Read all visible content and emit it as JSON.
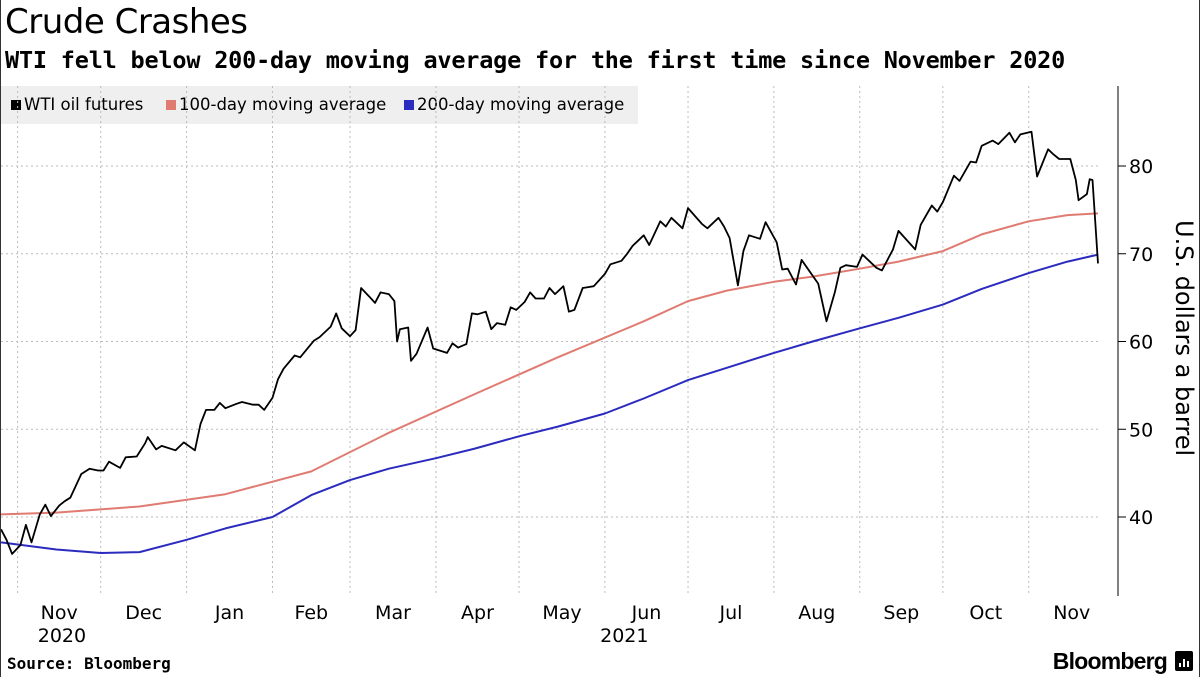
{
  "title": "Crude Crashes",
  "subtitle": "WTI fell below 200-day moving average for the first time since November 2020",
  "source": "Source: Bloomberg",
  "brand": "Bloomberg",
  "colors": {
    "wti": "#000000",
    "ma100": "#e07b72",
    "ma200": "#2b2bbf",
    "grid": "#bbbbbb"
  },
  "chart_data": {
    "type": "line",
    "title": "Crude Crashes",
    "subtitle": "WTI fell below 200-day moving average for the first time since November 2020",
    "ylabel": "U.S. dollars a barrel",
    "ylim": [
      32,
      87
    ],
    "yticks": [
      40,
      50,
      60,
      70,
      80
    ],
    "xlim": [
      "2020-10-26",
      "2021-11-26"
    ],
    "grid": true,
    "legend_position": "top-left",
    "month_ticks": [
      {
        "label": "Nov",
        "date": "2020-11-01"
      },
      {
        "label": "Dec",
        "date": "2020-12-01"
      },
      {
        "label": "Jan",
        "date": "2021-01-01"
      },
      {
        "label": "Feb",
        "date": "2021-02-01"
      },
      {
        "label": "Mar",
        "date": "2021-03-01"
      },
      {
        "label": "Apr",
        "date": "2021-04-01"
      },
      {
        "label": "May",
        "date": "2021-05-01"
      },
      {
        "label": "Jun",
        "date": "2021-06-01"
      },
      {
        "label": "Jul",
        "date": "2021-07-01"
      },
      {
        "label": "Aug",
        "date": "2021-08-01"
      },
      {
        "label": "Sep",
        "date": "2021-09-01"
      },
      {
        "label": "Oct",
        "date": "2021-10-01"
      },
      {
        "label": "Nov",
        "date": "2021-11-01"
      }
    ],
    "year_labels": [
      {
        "label": "2020",
        "date": "2020-11-17"
      },
      {
        "label": "2021",
        "date": "2021-06-08"
      }
    ],
    "series": [
      {
        "name": "WTI oil futures",
        "color": "#000000",
        "points": [
          [
            "2020-10-26",
            38.6
          ],
          [
            "2020-10-28",
            37.4
          ],
          [
            "2020-10-30",
            35.8
          ],
          [
            "2020-11-02",
            36.8
          ],
          [
            "2020-11-04",
            39.1
          ],
          [
            "2020-11-06",
            37.1
          ],
          [
            "2020-11-09",
            40.3
          ],
          [
            "2020-11-11",
            41.4
          ],
          [
            "2020-11-13",
            40.1
          ],
          [
            "2020-11-16",
            41.3
          ],
          [
            "2020-11-18",
            41.8
          ],
          [
            "2020-11-20",
            42.2
          ],
          [
            "2020-11-24",
            44.9
          ],
          [
            "2020-11-27",
            45.5
          ],
          [
            "2020-11-30",
            45.3
          ],
          [
            "2020-12-02",
            45.3
          ],
          [
            "2020-12-04",
            46.3
          ],
          [
            "2020-12-08",
            45.6
          ],
          [
            "2020-12-10",
            46.8
          ],
          [
            "2020-12-14",
            46.9
          ],
          [
            "2020-12-17",
            48.4
          ],
          [
            "2020-12-18",
            49.1
          ],
          [
            "2020-12-21",
            47.7
          ],
          [
            "2020-12-23",
            48.1
          ],
          [
            "2020-12-28",
            47.6
          ],
          [
            "2020-12-31",
            48.5
          ],
          [
            "2021-01-04",
            47.6
          ],
          [
            "2021-01-06",
            50.6
          ],
          [
            "2021-01-08",
            52.2
          ],
          [
            "2021-01-11",
            52.2
          ],
          [
            "2021-01-13",
            53.0
          ],
          [
            "2021-01-15",
            52.4
          ],
          [
            "2021-01-19",
            52.9
          ],
          [
            "2021-01-21",
            53.1
          ],
          [
            "2021-01-25",
            52.8
          ],
          [
            "2021-01-27",
            52.8
          ],
          [
            "2021-01-29",
            52.2
          ],
          [
            "2021-02-01",
            53.6
          ],
          [
            "2021-02-03",
            55.7
          ],
          [
            "2021-02-05",
            56.9
          ],
          [
            "2021-02-09",
            58.4
          ],
          [
            "2021-02-11",
            58.2
          ],
          [
            "2021-02-16",
            60.1
          ],
          [
            "2021-02-18",
            60.5
          ],
          [
            "2021-02-22",
            61.7
          ],
          [
            "2021-02-24",
            63.2
          ],
          [
            "2021-02-26",
            61.5
          ],
          [
            "2021-03-01",
            60.6
          ],
          [
            "2021-03-03",
            61.3
          ],
          [
            "2021-03-05",
            66.1
          ],
          [
            "2021-03-08",
            65.1
          ],
          [
            "2021-03-10",
            64.4
          ],
          [
            "2021-03-12",
            65.6
          ],
          [
            "2021-03-15",
            65.4
          ],
          [
            "2021-03-17",
            64.6
          ],
          [
            "2021-03-18",
            60.0
          ],
          [
            "2021-03-19",
            61.4
          ],
          [
            "2021-03-22",
            61.6
          ],
          [
            "2021-03-23",
            57.8
          ],
          [
            "2021-03-25",
            58.6
          ],
          [
            "2021-03-29",
            61.6
          ],
          [
            "2021-03-31",
            59.2
          ],
          [
            "2021-04-05",
            58.7
          ],
          [
            "2021-04-07",
            59.8
          ],
          [
            "2021-04-09",
            59.3
          ],
          [
            "2021-04-12",
            59.7
          ],
          [
            "2021-04-14",
            63.2
          ],
          [
            "2021-04-16",
            63.1
          ],
          [
            "2021-04-19",
            63.4
          ],
          [
            "2021-04-21",
            61.4
          ],
          [
            "2021-04-23",
            62.1
          ],
          [
            "2021-04-26",
            61.9
          ],
          [
            "2021-04-28",
            63.9
          ],
          [
            "2021-04-30",
            63.6
          ],
          [
            "2021-05-03",
            64.5
          ],
          [
            "2021-05-05",
            65.6
          ],
          [
            "2021-05-07",
            64.9
          ],
          [
            "2021-05-10",
            64.9
          ],
          [
            "2021-05-12",
            66.1
          ],
          [
            "2021-05-14",
            65.4
          ],
          [
            "2021-05-17",
            66.3
          ],
          [
            "2021-05-19",
            63.4
          ],
          [
            "2021-05-21",
            63.6
          ],
          [
            "2021-05-24",
            66.1
          ],
          [
            "2021-05-26",
            66.2
          ],
          [
            "2021-05-28",
            66.3
          ],
          [
            "2021-06-01",
            67.7
          ],
          [
            "2021-06-03",
            68.8
          ],
          [
            "2021-06-07",
            69.2
          ],
          [
            "2021-06-09",
            70.0
          ],
          [
            "2021-06-11",
            70.9
          ],
          [
            "2021-06-15",
            72.1
          ],
          [
            "2021-06-17",
            71.0
          ],
          [
            "2021-06-21",
            73.7
          ],
          [
            "2021-06-23",
            73.1
          ],
          [
            "2021-06-25",
            74.1
          ],
          [
            "2021-06-29",
            72.9
          ],
          [
            "2021-07-01",
            75.2
          ],
          [
            "2021-07-06",
            73.4
          ],
          [
            "2021-07-08",
            72.9
          ],
          [
            "2021-07-12",
            74.1
          ],
          [
            "2021-07-14",
            73.1
          ],
          [
            "2021-07-16",
            71.8
          ],
          [
            "2021-07-19",
            66.4
          ],
          [
            "2021-07-21",
            70.3
          ],
          [
            "2021-07-23",
            72.1
          ],
          [
            "2021-07-27",
            71.7
          ],
          [
            "2021-07-29",
            73.6
          ],
          [
            "2021-08-02",
            71.3
          ],
          [
            "2021-08-04",
            68.2
          ],
          [
            "2021-08-06",
            68.3
          ],
          [
            "2021-08-09",
            66.5
          ],
          [
            "2021-08-11",
            69.3
          ],
          [
            "2021-08-13",
            68.4
          ],
          [
            "2021-08-17",
            66.6
          ],
          [
            "2021-08-19",
            63.7
          ],
          [
            "2021-08-20",
            62.3
          ],
          [
            "2021-08-23",
            65.6
          ],
          [
            "2021-08-25",
            68.4
          ],
          [
            "2021-08-27",
            68.7
          ],
          [
            "2021-08-31",
            68.5
          ],
          [
            "2021-09-02",
            69.9
          ],
          [
            "2021-09-07",
            68.4
          ],
          [
            "2021-09-09",
            68.1
          ],
          [
            "2021-09-13",
            70.5
          ],
          [
            "2021-09-15",
            72.6
          ],
          [
            "2021-09-17",
            71.9
          ],
          [
            "2021-09-21",
            70.5
          ],
          [
            "2021-09-23",
            73.3
          ],
          [
            "2021-09-27",
            75.5
          ],
          [
            "2021-09-29",
            74.8
          ],
          [
            "2021-10-01",
            75.9
          ],
          [
            "2021-10-05",
            78.9
          ],
          [
            "2021-10-07",
            78.3
          ],
          [
            "2021-10-11",
            80.5
          ],
          [
            "2021-10-13",
            80.4
          ],
          [
            "2021-10-15",
            82.3
          ],
          [
            "2021-10-19",
            82.9
          ],
          [
            "2021-10-21",
            82.5
          ],
          [
            "2021-10-25",
            83.8
          ],
          [
            "2021-10-27",
            82.7
          ],
          [
            "2021-10-29",
            83.6
          ],
          [
            "2021-11-02",
            83.9
          ],
          [
            "2021-11-04",
            78.8
          ],
          [
            "2021-11-08",
            81.9
          ],
          [
            "2021-11-10",
            81.3
          ],
          [
            "2021-11-12",
            80.8
          ],
          [
            "2021-11-16",
            80.8
          ],
          [
            "2021-11-18",
            78.4
          ],
          [
            "2021-11-19",
            76.1
          ],
          [
            "2021-11-22",
            76.8
          ],
          [
            "2021-11-23",
            78.5
          ],
          [
            "2021-11-24",
            78.4
          ],
          [
            "2021-11-26",
            68.9
          ]
        ]
      },
      {
        "name": "100-day moving average",
        "color": "#e07b72",
        "points": [
          [
            "2020-10-26",
            40.3
          ],
          [
            "2020-11-15",
            40.5
          ],
          [
            "2020-12-15",
            41.2
          ],
          [
            "2021-01-15",
            42.6
          ],
          [
            "2021-02-15",
            45.2
          ],
          [
            "2021-03-15",
            49.6
          ],
          [
            "2021-04-15",
            54.0
          ],
          [
            "2021-05-15",
            58.2
          ],
          [
            "2021-06-15",
            62.3
          ],
          [
            "2021-07-01",
            64.6
          ],
          [
            "2021-07-15",
            65.8
          ],
          [
            "2021-08-01",
            66.8
          ],
          [
            "2021-08-15",
            67.4
          ],
          [
            "2021-09-01",
            68.3
          ],
          [
            "2021-09-15",
            69.1
          ],
          [
            "2021-10-01",
            70.3
          ],
          [
            "2021-10-15",
            72.2
          ],
          [
            "2021-11-01",
            73.7
          ],
          [
            "2021-11-15",
            74.4
          ],
          [
            "2021-11-26",
            74.6
          ]
        ]
      },
      {
        "name": "200-day moving average",
        "color": "#2b2bbf",
        "points": [
          [
            "2020-10-26",
            37.1
          ],
          [
            "2020-11-15",
            36.3
          ],
          [
            "2020-12-01",
            35.9
          ],
          [
            "2020-12-15",
            36.0
          ],
          [
            "2021-01-01",
            37.4
          ],
          [
            "2021-01-15",
            38.7
          ],
          [
            "2021-02-01",
            40.0
          ],
          [
            "2021-02-15",
            42.5
          ],
          [
            "2021-03-01",
            44.2
          ],
          [
            "2021-03-15",
            45.5
          ],
          [
            "2021-04-01",
            46.7
          ],
          [
            "2021-04-15",
            47.8
          ],
          [
            "2021-05-01",
            49.2
          ],
          [
            "2021-05-15",
            50.3
          ],
          [
            "2021-06-01",
            51.8
          ],
          [
            "2021-06-15",
            53.5
          ],
          [
            "2021-07-01",
            55.6
          ],
          [
            "2021-07-15",
            57.0
          ],
          [
            "2021-08-01",
            58.7
          ],
          [
            "2021-08-15",
            60.0
          ],
          [
            "2021-09-01",
            61.5
          ],
          [
            "2021-09-15",
            62.7
          ],
          [
            "2021-10-01",
            64.2
          ],
          [
            "2021-10-15",
            66.0
          ],
          [
            "2021-11-01",
            67.8
          ],
          [
            "2021-11-15",
            69.1
          ],
          [
            "2021-11-26",
            69.9
          ]
        ]
      }
    ]
  }
}
